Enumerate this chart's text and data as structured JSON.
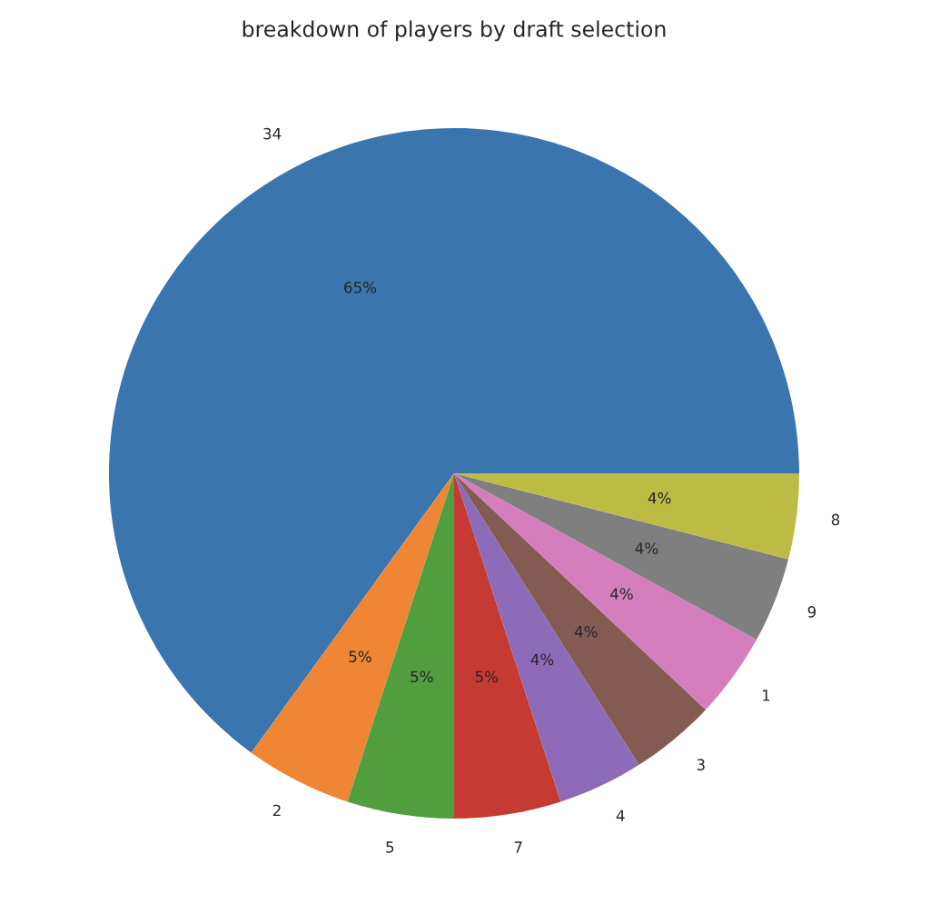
{
  "chart_data": {
    "type": "pie",
    "title": "breakdown of players by draft selection",
    "categories": [
      "34",
      "2",
      "5",
      "7",
      "4",
      "3",
      "1",
      "9",
      "8"
    ],
    "values": [
      65,
      5,
      5,
      5,
      4,
      4,
      4,
      4,
      4
    ],
    "value_labels": [
      "65%",
      "5%",
      "5%",
      "5%",
      "4%",
      "4%",
      "4%",
      "4%",
      "4%"
    ],
    "colors": [
      "#3a75ae",
      "#ef8636",
      "#519e3e",
      "#c53a32",
      "#8d6bb8",
      "#845b53",
      "#d47ebe",
      "#7f7f7f",
      "#bcbc45"
    ]
  }
}
